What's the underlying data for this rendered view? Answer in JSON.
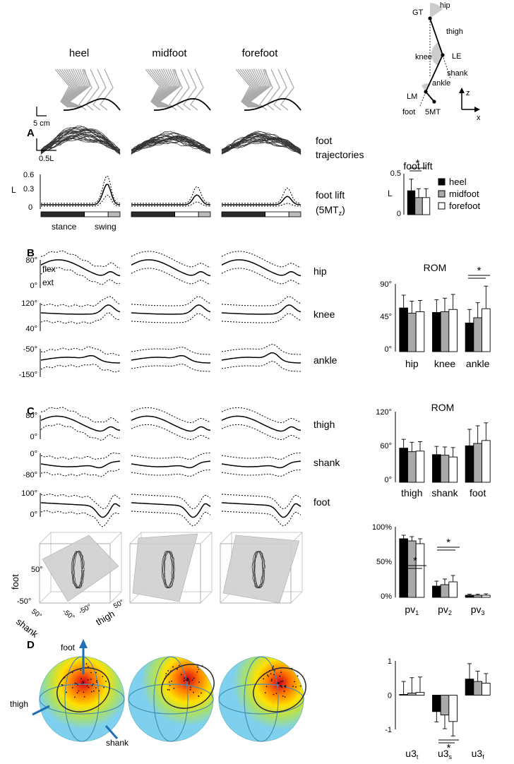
{
  "figure": {
    "column_titles": [
      "heel",
      "midfoot",
      "forefoot"
    ],
    "panel_letters": [
      "A",
      "B",
      "C",
      "D"
    ],
    "scale_bars": {
      "stick": "5 cm",
      "trajectory": "0.5L"
    },
    "legend": [
      "heel",
      "midfoot",
      "forefoot"
    ],
    "colors": {
      "heel": "#000000",
      "midfoot": "#aaaaaa",
      "forefoot": "#ffffff",
      "stick": "#aaaaaa",
      "plane": "#cfcfcf",
      "sphere": "#7fd0ee",
      "axis_arrow": "#1f6fb5"
    }
  },
  "schematic": {
    "labels": [
      "GT",
      "hip",
      "thigh",
      "knee",
      "LE",
      "shank",
      "ankle",
      "LM",
      "foot",
      "5MT"
    ],
    "axes": [
      "z",
      "x"
    ]
  },
  "panel_a": {
    "foot_trajectories_label": [
      "foot",
      "trajectories"
    ],
    "foot_lift_label": [
      "foot lift",
      "(5MT",
      "z",
      ")"
    ],
    "lift_axis": {
      "ylabel": "L",
      "ticks": [
        "0.6",
        "0.3",
        "0"
      ]
    },
    "phase_labels": [
      "stance",
      "swing"
    ],
    "bar_title": "foot lift",
    "bar_axis": {
      "ylabel": "L",
      "ticks": [
        "0.5",
        "0"
      ]
    }
  },
  "panel_b": {
    "rows": [
      {
        "label": "hip",
        "ticks": [
          "80°",
          "0°"
        ],
        "extra": [
          "flex",
          "ext"
        ]
      },
      {
        "label": "knee",
        "ticks": [
          "120°",
          "40°"
        ]
      },
      {
        "label": "ankle",
        "ticks": [
          "-50°",
          "-150°"
        ]
      }
    ],
    "bar_title": "ROM",
    "bar_ticks": [
      "90°",
      "45°",
      "0°"
    ],
    "categories": [
      "hip",
      "knee",
      "ankle"
    ]
  },
  "panel_c": {
    "rows": [
      {
        "label": "thigh",
        "ticks": [
          "80°",
          "0°"
        ]
      },
      {
        "label": "shank",
        "ticks": [
          "0°",
          "-80°"
        ]
      },
      {
        "label": "foot",
        "ticks": [
          "100°",
          "0°"
        ]
      }
    ],
    "bar_title": "ROM",
    "bar_ticks": [
      "120°",
      "60°",
      "0°"
    ],
    "categories": [
      "thigh",
      "shank",
      "foot"
    ],
    "cube_labels": {
      "foot": "foot",
      "shank": "shank",
      "thigh": "thigh",
      "t50": "50°",
      "tm50": "-50°"
    },
    "pv_ticks": [
      "100%",
      "50%",
      "0%"
    ],
    "pv_labels": [
      [
        "pv",
        "1"
      ],
      [
        "pv",
        "2"
      ],
      [
        "pv",
        "3"
      ]
    ]
  },
  "panel_d": {
    "axis_labels": [
      "foot",
      "thigh",
      "shank"
    ],
    "u_ticks": [
      "1",
      "0",
      "-1"
    ],
    "u_labels": [
      [
        "u3",
        "t"
      ],
      [
        "u3",
        "s"
      ],
      [
        "u3",
        "f"
      ]
    ]
  },
  "significance": "*",
  "chart_data": [
    {
      "type": "bar",
      "title": "foot lift",
      "ylabel": "L",
      "ylim": [
        0,
        0.6
      ],
      "series": [
        {
          "name": "heel",
          "values": [
            0.35
          ]
        },
        {
          "name": "midfoot",
          "values": [
            0.25
          ]
        },
        {
          "name": "forefoot",
          "values": [
            0.25
          ]
        }
      ],
      "errors": [
        0.17,
        0.13,
        0.13
      ],
      "significance": [
        [
          "heel",
          "midfoot"
        ],
        [
          "heel",
          "forefoot"
        ]
      ]
    },
    {
      "type": "bar",
      "title": "ROM",
      "categories": [
        "hip",
        "knee",
        "ankle"
      ],
      "ylim": [
        0,
        90
      ],
      "series": [
        {
          "name": "heel",
          "values": [
            58,
            52,
            38
          ]
        },
        {
          "name": "midfoot",
          "values": [
            51,
            53,
            45
          ]
        },
        {
          "name": "forefoot",
          "values": [
            53,
            56,
            57
          ]
        }
      ],
      "errors": [
        [
          17,
          17,
          18
        ],
        [
          16,
          18,
          20
        ],
        [
          15,
          20,
          30
        ]
      ],
      "significance": "ankle: heel vs midfoot, heel vs forefoot"
    },
    {
      "type": "bar",
      "title": "ROM",
      "categories": [
        "thigh",
        "shank",
        "foot"
      ],
      "ylim": [
        0,
        120
      ],
      "series": [
        {
          "name": "heel",
          "values": [
            58,
            47,
            62
          ]
        },
        {
          "name": "midfoot",
          "values": [
            52,
            46,
            66
          ]
        },
        {
          "name": "forefoot",
          "values": [
            53,
            43,
            71
          ]
        }
      ],
      "errors": [
        [
          15,
          14,
          28
        ],
        [
          16,
          14,
          30
        ],
        [
          16,
          16,
          30
        ]
      ]
    },
    {
      "type": "bar",
      "categories": [
        "pv1",
        "pv2",
        "pv3"
      ],
      "ylim": [
        0,
        100
      ],
      "series": [
        {
          "name": "heel",
          "values": [
            83,
            16,
            3
          ]
        },
        {
          "name": "midfoot",
          "values": [
            80,
            18,
            3
          ]
        },
        {
          "name": "forefoot",
          "values": [
            76,
            22,
            3
          ]
        }
      ],
      "errors": [
        [
          5,
          7,
          1.5
        ],
        [
          6,
          8,
          1.5
        ],
        [
          7,
          9,
          2
        ]
      ],
      "significance": "pv1 and pv2: heel vs midfoot, heel vs forefoot"
    },
    {
      "type": "bar",
      "categories": [
        "u3t",
        "u3s",
        "u3f"
      ],
      "ylim": [
        -1,
        1
      ],
      "series": [
        {
          "name": "heel",
          "values": [
            0.02,
            -0.48,
            0.47
          ]
        },
        {
          "name": "midfoot",
          "values": [
            0.06,
            -0.58,
            0.4
          ]
        },
        {
          "name": "forefoot",
          "values": [
            0.08,
            -0.77,
            0.35
          ]
        }
      ],
      "errors": [
        [
          0.38,
          0.3,
          0.45
        ],
        [
          0.45,
          0.4,
          0.3
        ],
        [
          0.45,
          0.42,
          0.28
        ]
      ],
      "significance": "u3s: heel vs midfoot, heel vs forefoot"
    }
  ]
}
